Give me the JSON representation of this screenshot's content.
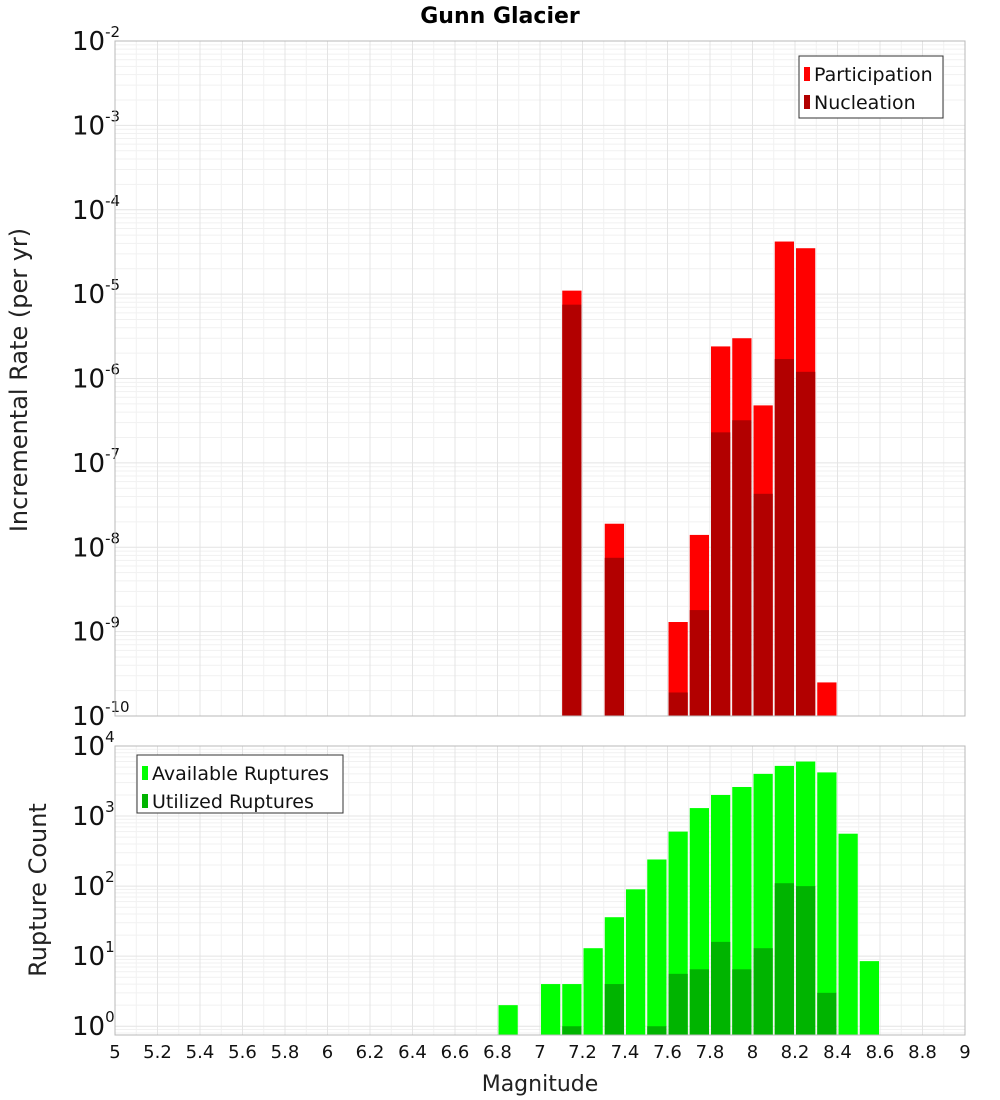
{
  "chart_data": [
    {
      "type": "bar",
      "title": "Gunn Glacier",
      "ylabel": "Incremental Rate (per yr)",
      "yscale": "log",
      "ylim": [
        1e-10,
        0.01
      ],
      "yticks": [
        {
          "base": "10",
          "exp": "-10"
        },
        {
          "base": "10",
          "exp": "-9"
        },
        {
          "base": "10",
          "exp": "-8"
        },
        {
          "base": "10",
          "exp": "-7"
        },
        {
          "base": "10",
          "exp": "-6"
        },
        {
          "base": "10",
          "exp": "-5"
        },
        {
          "base": "10",
          "exp": "-4"
        },
        {
          "base": "10",
          "exp": "-3"
        },
        {
          "base": "10",
          "exp": "-2"
        }
      ],
      "legend_position": "top-right",
      "series": [
        {
          "name": "Participation",
          "color": "#ff0000",
          "x": [
            7.15,
            7.35,
            7.65,
            7.75,
            7.85,
            7.95,
            8.05,
            8.15,
            8.25,
            8.35
          ],
          "values": [
            1.1e-05,
            1.9e-08,
            1.3e-09,
            1.4e-08,
            2.4e-06,
            3e-06,
            4.8e-07,
            4.2e-05,
            3.5e-05,
            2.5e-10
          ]
        },
        {
          "name": "Nucleation",
          "color": "#b20000",
          "x": [
            7.15,
            7.35,
            7.65,
            7.75,
            7.85,
            7.95,
            8.05,
            8.15,
            8.25
          ],
          "values": [
            7.5e-06,
            7.5e-09,
            1.9e-10,
            1.8e-09,
            2.3e-07,
            3.2e-07,
            4.3e-08,
            1.7e-06,
            1.2e-06
          ]
        }
      ]
    },
    {
      "type": "bar",
      "ylabel": "Rupture Count",
      "xlabel": "Magnitude",
      "yscale": "log",
      "ylim": [
        0.75,
        10000
      ],
      "yticks": [
        {
          "base": "10",
          "exp": "0"
        },
        {
          "base": "10",
          "exp": "1"
        },
        {
          "base": "10",
          "exp": "2"
        },
        {
          "base": "10",
          "exp": "3"
        },
        {
          "base": "10",
          "exp": "4"
        }
      ],
      "xlim": [
        5,
        9
      ],
      "xticks": [
        "5",
        "5.2",
        "5.4",
        "5.6",
        "5.8",
        "6",
        "6.2",
        "6.4",
        "6.6",
        "6.8",
        "7",
        "7.2",
        "7.4",
        "7.6",
        "7.8",
        "8",
        "8.2",
        "8.4",
        "8.6",
        "8.8",
        "9"
      ],
      "legend_position": "top-left",
      "series": [
        {
          "name": "Available Ruptures",
          "color": "#00ff00",
          "x": [
            6.85,
            7.05,
            7.15,
            7.25,
            7.35,
            7.45,
            7.55,
            7.65,
            7.75,
            7.85,
            7.95,
            8.05,
            8.15,
            8.25,
            8.35,
            8.45,
            8.55
          ],
          "values": [
            2,
            4,
            4,
            13,
            36,
            90,
            240,
            600,
            1300,
            2000,
            2600,
            4000,
            5200,
            6000,
            4200,
            560,
            8.5
          ]
        },
        {
          "name": "Utilized Ruptures",
          "color": "#00b400",
          "x": [
            7.15,
            7.35,
            7.55,
            7.65,
            7.75,
            7.85,
            7.95,
            8.05,
            8.15,
            8.25,
            8.35
          ],
          "values": [
            1,
            4,
            1,
            5.6,
            6.5,
            16,
            6.5,
            13,
            110,
            100,
            3
          ]
        }
      ]
    }
  ]
}
